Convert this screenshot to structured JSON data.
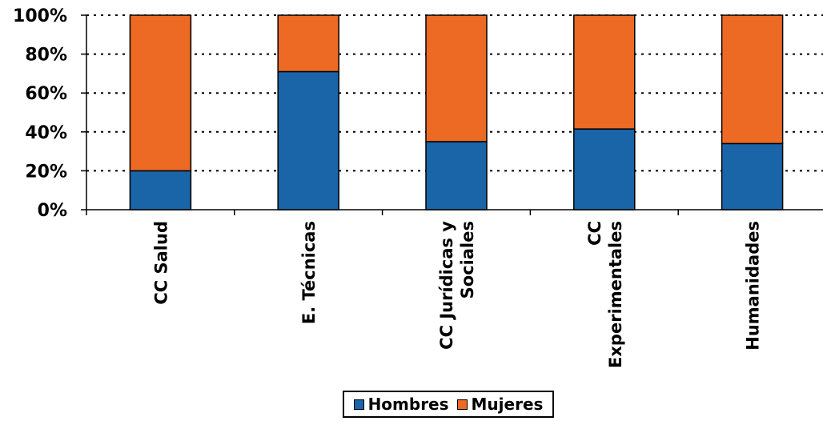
{
  "chart_data": {
    "type": "bar",
    "stacked": true,
    "categories": [
      "CC Salud",
      "E. Técnicas",
      "CC Jurídicas y Sociales",
      "CC Experimentales",
      "Humanidades"
    ],
    "category_label_lines": [
      [
        "CC Salud"
      ],
      [
        "E. Técnicas"
      ],
      [
        "CC Jurídicas y",
        "Sociales"
      ],
      [
        "CC",
        "Experimentales"
      ],
      [
        "Humanidades"
      ]
    ],
    "series": [
      {
        "name": "Hombres",
        "color": "#1a64a8",
        "values": [
          20,
          71,
          35,
          41.5,
          34
        ]
      },
      {
        "name": "Mujeres",
        "color": "#ec6a24",
        "values": [
          80,
          29,
          65,
          58.5,
          66
        ]
      }
    ],
    "ylim": [
      0,
      100
    ],
    "yticks": [
      "0%",
      "20%",
      "40%",
      "60%",
      "80%",
      "100%"
    ],
    "ytick_values": [
      0,
      20,
      40,
      60,
      80,
      100
    ],
    "grid": "dotted horizontal",
    "legend_position": "bottom"
  }
}
